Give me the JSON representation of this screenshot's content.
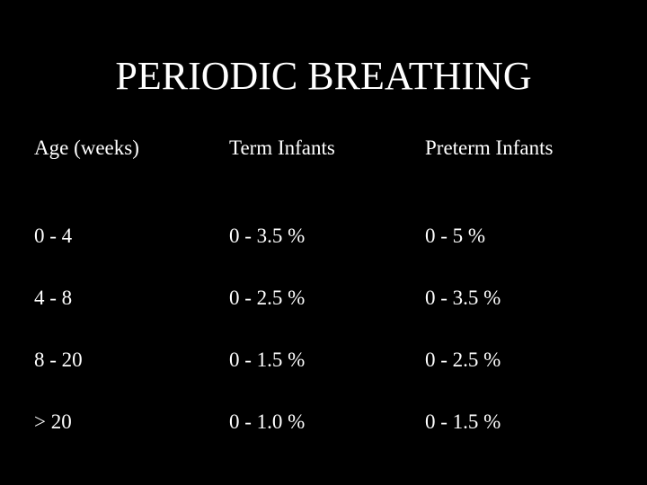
{
  "title": "PERIODIC BREATHING",
  "table": {
    "header": [
      "Age (weeks)",
      "Term Infants",
      "Preterm Infants"
    ],
    "rows": [
      [
        "0 - 4",
        "0 - 3.5 %",
        "0 - 5 %"
      ],
      [
        "4 - 8",
        "0 - 2.5 %",
        "0 - 3.5 %"
      ],
      [
        "8 - 20",
        "0 - 1.5 %",
        "0 - 2.5 %"
      ],
      [
        "> 20",
        "0 - 1.0 %",
        "0 - 1.5 %"
      ]
    ]
  }
}
